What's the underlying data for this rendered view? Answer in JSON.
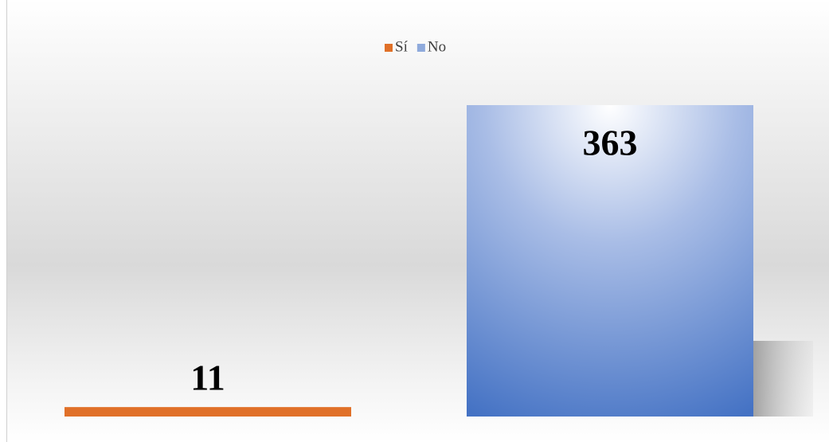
{
  "chart_data": {
    "type": "bar",
    "categories": [
      null
    ],
    "series": [
      {
        "name": "Sí",
        "color": "#e07028",
        "values": [
          11
        ]
      },
      {
        "name": "No",
        "color": "#4472c4",
        "values": [
          363
        ]
      }
    ],
    "legend": "top"
  }
}
